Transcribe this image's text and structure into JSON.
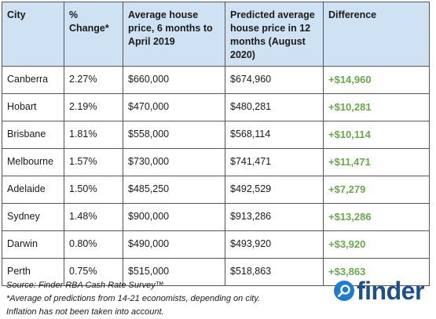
{
  "table": {
    "headers": [
      "City",
      "% Change*",
      "Average house price, 6 months to April 2019",
      "Predicted average house price in 12 months (August 2020)",
      "Difference"
    ],
    "rows": [
      {
        "city": "Canberra",
        "change": "2.27%",
        "avg": "$660,000",
        "predicted": "$674,960",
        "diff": "+$14,960"
      },
      {
        "city": "Hobart",
        "change": "2.19%",
        "avg": "$470,000",
        "predicted": "$480,281",
        "diff": "+$10,281"
      },
      {
        "city": "Brisbane",
        "change": "1.81%",
        "avg": "$558,000",
        "predicted": "$568,114",
        "diff": "+$10,114"
      },
      {
        "city": "Melbourne",
        "change": "1.57%",
        "avg": "$730,000",
        "predicted": "$741,471",
        "diff": "+$11,471"
      },
      {
        "city": "Adelaide",
        "change": "1.50%",
        "avg": "$485,250",
        "predicted": "$492,529",
        "diff": "+$7,279"
      },
      {
        "city": "Sydney",
        "change": "1.48%",
        "avg": "$900,000",
        "predicted": "$913,286",
        "diff": "+$13,286"
      },
      {
        "city": "Darwin",
        "change": "0.80%",
        "avg": "$490,000",
        "predicted": "$493,920",
        "diff": "+$3,920"
      },
      {
        "city": "Perth",
        "change": "0.75%",
        "avg": "$515,000",
        "predicted": "$518,863",
        "diff": "+$3,863"
      }
    ]
  },
  "footer": {
    "source": "Source: Finder RBA Cash Rate Survey™",
    "note1": "*Average of predictions from 14-21 economists, depending on city.",
    "note2": "Inflation has not been taken into account."
  },
  "logo": {
    "text": "finder",
    "icon": "search-magnifier-icon"
  },
  "colors": {
    "header_bg": "#cfe2f3",
    "difference_text": "#6aa84f",
    "border": "#555555",
    "logo_blue": "#1f7ad1",
    "logo_text": "#1f4f8a"
  }
}
